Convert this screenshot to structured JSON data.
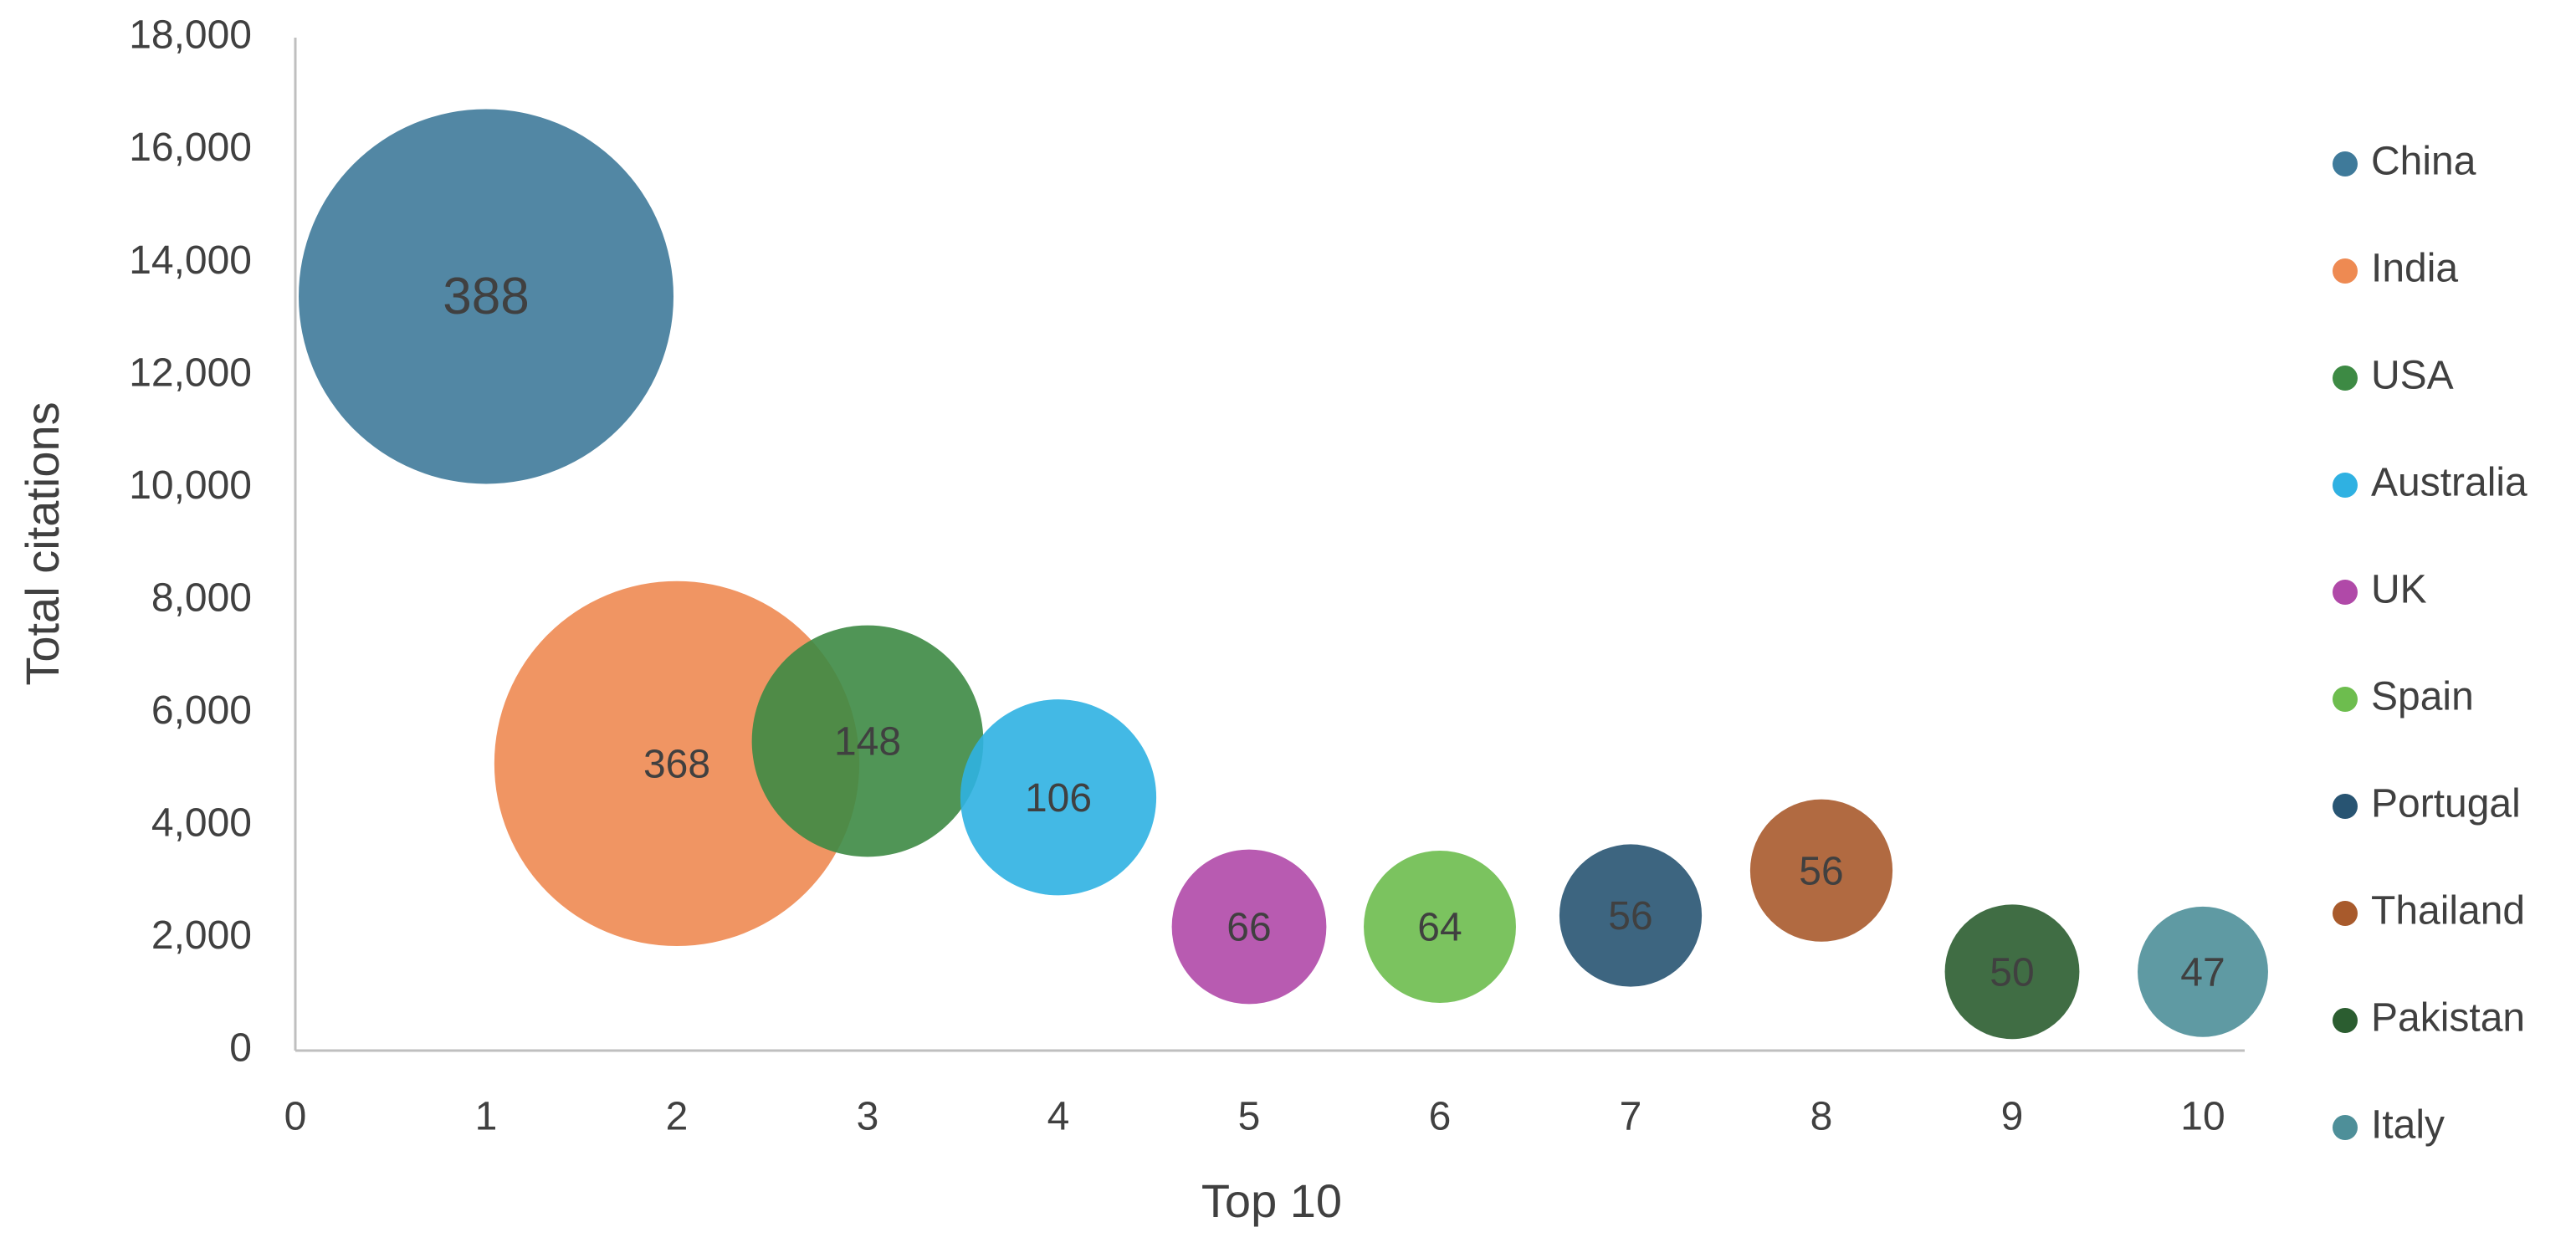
{
  "chart_data": {
    "type": "bubble",
    "x_label": "Top 10",
    "y_label": "Total citations",
    "xlim": [
      0,
      10
    ],
    "xticks": [
      0,
      1,
      2,
      3,
      4,
      5,
      6,
      7,
      8,
      9,
      10
    ],
    "ylim": [
      0,
      18000
    ],
    "yticks": [
      0,
      {
        "value": 2000,
        "label": "2,000"
      },
      {
        "value": 4000,
        "label": "4,000"
      },
      {
        "value": 6000,
        "label": "6,000"
      },
      {
        "value": 8000,
        "label": "8,000"
      },
      {
        "value": 10000,
        "label": "10,000"
      },
      {
        "value": 12000,
        "label": "12,000"
      },
      {
        "value": 14000,
        "label": "14,000"
      },
      {
        "value": 16000,
        "label": "16,000"
      },
      {
        "value": 18000,
        "label": "18,000"
      }
    ],
    "grid": false,
    "legend": "right",
    "series": [
      {
        "name": "China",
        "color": "#3f7a9a",
        "x": [
          1
        ],
        "values": [
          13400
        ],
        "sizes": [
          388
        ]
      },
      {
        "name": "India",
        "color": "#ee8a52",
        "x": [
          2
        ],
        "values": [
          5100
        ],
        "sizes": [
          368
        ]
      },
      {
        "name": "USA",
        "color": "#3d8a44",
        "x": [
          3
        ],
        "values": [
          5500
        ],
        "sizes": [
          148
        ]
      },
      {
        "name": "Australia",
        "color": "#2fb1e2",
        "x": [
          4
        ],
        "values": [
          4500
        ],
        "sizes": [
          106
        ]
      },
      {
        "name": "UK",
        "color": "#b049a8",
        "x": [
          5
        ],
        "values": [
          2200
        ],
        "sizes": [
          66
        ]
      },
      {
        "name": "Spain",
        "color": "#6dbd4e",
        "x": [
          6
        ],
        "values": [
          2200
        ],
        "sizes": [
          64
        ]
      },
      {
        "name": "Portugal",
        "color": "#285472",
        "x": [
          7
        ],
        "values": [
          2400
        ],
        "sizes": [
          56
        ]
      },
      {
        "name": "Thailand",
        "color": "#a85a2c",
        "x": [
          8
        ],
        "values": [
          3200
        ],
        "sizes": [
          56
        ]
      },
      {
        "name": "Pakistan",
        "color": "#2b5d30",
        "x": [
          9
        ],
        "values": [
          1400
        ],
        "sizes": [
          50
        ]
      },
      {
        "name": "Italy",
        "color": "#4e8f99",
        "x": [
          10
        ],
        "values": [
          1400
        ],
        "sizes": [
          47
        ]
      }
    ]
  }
}
